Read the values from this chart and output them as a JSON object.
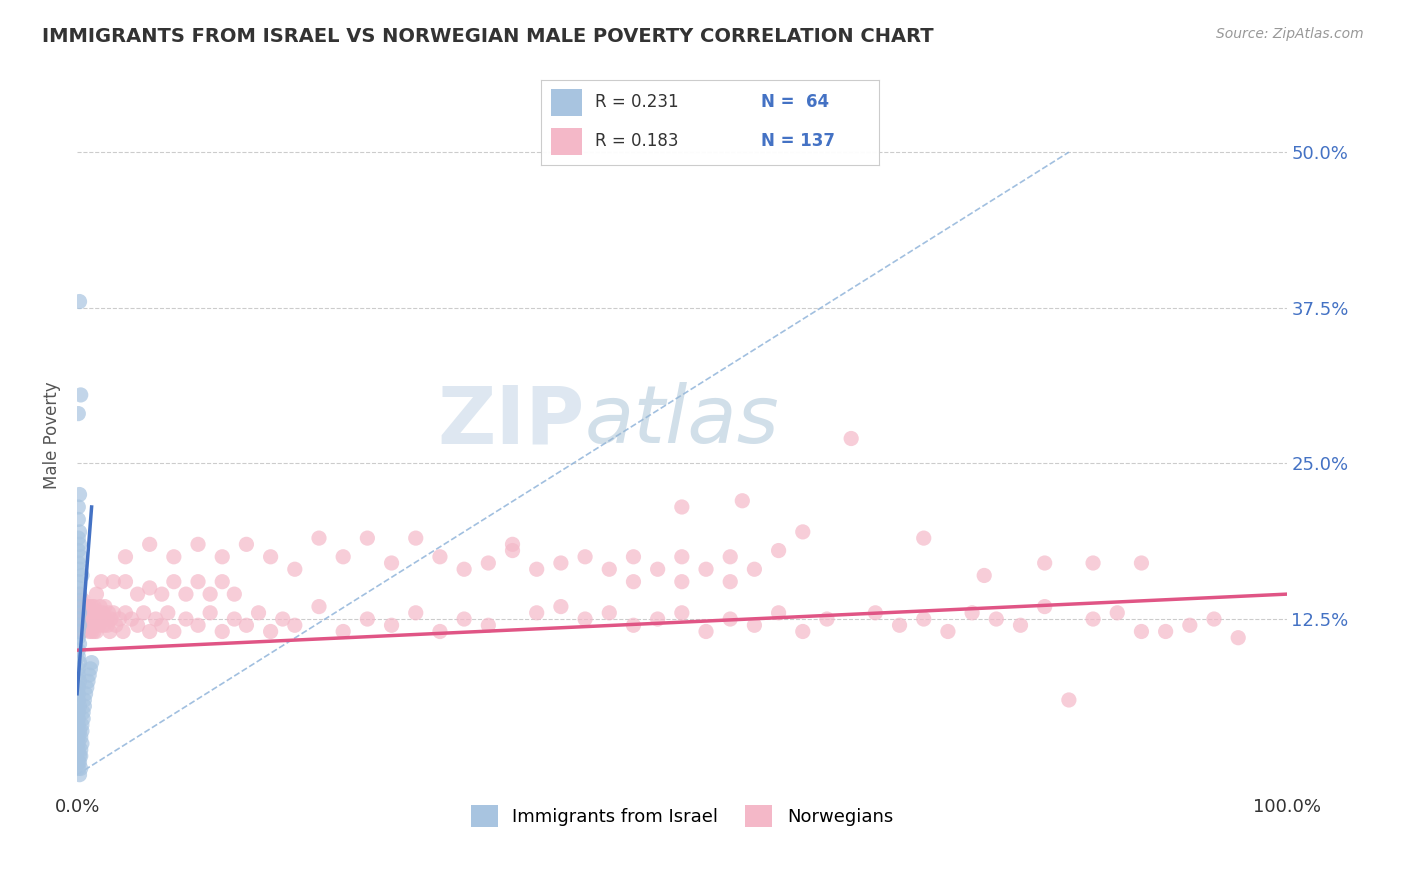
{
  "title": "IMMIGRANTS FROM ISRAEL VS NORWEGIAN MALE POVERTY CORRELATION CHART",
  "source": "Source: ZipAtlas.com",
  "ylabel": "Male Poverty",
  "xlim": [
    0,
    1.0
  ],
  "ylim": [
    -0.015,
    0.56
  ],
  "xtick_labels": [
    "0.0%",
    "100.0%"
  ],
  "ytick_labels": [
    "12.5%",
    "25.0%",
    "37.5%",
    "50.0%"
  ],
  "ytick_values": [
    0.125,
    0.25,
    0.375,
    0.5
  ],
  "color_israel": "#a8c4e0",
  "color_norway": "#f4b8c8",
  "color_israel_line": "#4472c4",
  "color_norway_line": "#e05585",
  "color_diag_dash": "#8ab0d8",
  "watermark_ZIP": "ZIP",
  "watermark_atlas": "atlas",
  "israel_scatter": [
    [
      0.002,
      0.38
    ],
    [
      0.003,
      0.305
    ],
    [
      0.001,
      0.29
    ],
    [
      0.002,
      0.225
    ],
    [
      0.001,
      0.215
    ],
    [
      0.001,
      0.205
    ],
    [
      0.002,
      0.195
    ],
    [
      0.001,
      0.19
    ],
    [
      0.002,
      0.185
    ],
    [
      0.001,
      0.18
    ],
    [
      0.003,
      0.175
    ],
    [
      0.001,
      0.17
    ],
    [
      0.002,
      0.165
    ],
    [
      0.004,
      0.16
    ],
    [
      0.001,
      0.155
    ],
    [
      0.001,
      0.15
    ],
    [
      0.002,
      0.145
    ],
    [
      0.001,
      0.14
    ],
    [
      0.001,
      0.135
    ],
    [
      0.002,
      0.13
    ],
    [
      0.001,
      0.125
    ],
    [
      0.002,
      0.12
    ],
    [
      0.001,
      0.115
    ],
    [
      0.001,
      0.11
    ],
    [
      0.002,
      0.105
    ],
    [
      0.001,
      0.1
    ],
    [
      0.001,
      0.095
    ],
    [
      0.002,
      0.09
    ],
    [
      0.001,
      0.085
    ],
    [
      0.001,
      0.08
    ],
    [
      0.002,
      0.075
    ],
    [
      0.001,
      0.07
    ],
    [
      0.001,
      0.065
    ],
    [
      0.001,
      0.06
    ],
    [
      0.002,
      0.055
    ],
    [
      0.001,
      0.05
    ],
    [
      0.001,
      0.045
    ],
    [
      0.001,
      0.04
    ],
    [
      0.002,
      0.035
    ],
    [
      0.001,
      0.03
    ],
    [
      0.001,
      0.025
    ],
    [
      0.001,
      0.02
    ],
    [
      0.002,
      0.015
    ],
    [
      0.001,
      0.01
    ],
    [
      0.001,
      0.005
    ],
    [
      0.002,
      0.0
    ],
    [
      0.003,
      0.005
    ],
    [
      0.002,
      0.01
    ],
    [
      0.003,
      0.015
    ],
    [
      0.003,
      0.02
    ],
    [
      0.004,
      0.025
    ],
    [
      0.003,
      0.03
    ],
    [
      0.004,
      0.035
    ],
    [
      0.004,
      0.04
    ],
    [
      0.005,
      0.045
    ],
    [
      0.005,
      0.05
    ],
    [
      0.006,
      0.055
    ],
    [
      0.006,
      0.06
    ],
    [
      0.007,
      0.065
    ],
    [
      0.008,
      0.07
    ],
    [
      0.009,
      0.075
    ],
    [
      0.01,
      0.08
    ],
    [
      0.011,
      0.085
    ],
    [
      0.012,
      0.09
    ]
  ],
  "norway_scatter": [
    [
      0.001,
      0.135
    ],
    [
      0.001,
      0.125
    ],
    [
      0.001,
      0.115
    ],
    [
      0.002,
      0.145
    ],
    [
      0.002,
      0.13
    ],
    [
      0.002,
      0.12
    ],
    [
      0.003,
      0.14
    ],
    [
      0.003,
      0.13
    ],
    [
      0.003,
      0.115
    ],
    [
      0.004,
      0.135
    ],
    [
      0.004,
      0.125
    ],
    [
      0.004,
      0.115
    ],
    [
      0.005,
      0.14
    ],
    [
      0.005,
      0.13
    ],
    [
      0.005,
      0.12
    ],
    [
      0.006,
      0.135
    ],
    [
      0.006,
      0.125
    ],
    [
      0.007,
      0.13
    ],
    [
      0.007,
      0.12
    ],
    [
      0.008,
      0.135
    ],
    [
      0.008,
      0.125
    ],
    [
      0.009,
      0.13
    ],
    [
      0.009,
      0.12
    ],
    [
      0.01,
      0.135
    ],
    [
      0.01,
      0.115
    ],
    [
      0.011,
      0.13
    ],
    [
      0.011,
      0.12
    ],
    [
      0.012,
      0.135
    ],
    [
      0.012,
      0.115
    ],
    [
      0.013,
      0.13
    ],
    [
      0.013,
      0.12
    ],
    [
      0.014,
      0.135
    ],
    [
      0.014,
      0.115
    ],
    [
      0.015,
      0.13
    ],
    [
      0.015,
      0.12
    ],
    [
      0.016,
      0.145
    ],
    [
      0.016,
      0.115
    ],
    [
      0.017,
      0.13
    ],
    [
      0.018,
      0.12
    ],
    [
      0.019,
      0.135
    ],
    [
      0.02,
      0.125
    ],
    [
      0.021,
      0.13
    ],
    [
      0.022,
      0.12
    ],
    [
      0.023,
      0.135
    ],
    [
      0.024,
      0.125
    ],
    [
      0.025,
      0.12
    ],
    [
      0.026,
      0.13
    ],
    [
      0.027,
      0.115
    ],
    [
      0.028,
      0.125
    ],
    [
      0.03,
      0.13
    ],
    [
      0.032,
      0.12
    ],
    [
      0.035,
      0.125
    ],
    [
      0.038,
      0.115
    ],
    [
      0.04,
      0.13
    ],
    [
      0.045,
      0.125
    ],
    [
      0.05,
      0.12
    ],
    [
      0.055,
      0.13
    ],
    [
      0.06,
      0.115
    ],
    [
      0.065,
      0.125
    ],
    [
      0.07,
      0.12
    ],
    [
      0.075,
      0.13
    ],
    [
      0.08,
      0.115
    ],
    [
      0.09,
      0.125
    ],
    [
      0.1,
      0.12
    ],
    [
      0.11,
      0.13
    ],
    [
      0.12,
      0.115
    ],
    [
      0.13,
      0.125
    ],
    [
      0.14,
      0.12
    ],
    [
      0.15,
      0.13
    ],
    [
      0.16,
      0.115
    ],
    [
      0.17,
      0.125
    ],
    [
      0.18,
      0.12
    ],
    [
      0.2,
      0.135
    ],
    [
      0.22,
      0.115
    ],
    [
      0.24,
      0.125
    ],
    [
      0.26,
      0.12
    ],
    [
      0.28,
      0.13
    ],
    [
      0.3,
      0.115
    ],
    [
      0.32,
      0.125
    ],
    [
      0.34,
      0.12
    ],
    [
      0.36,
      0.18
    ],
    [
      0.38,
      0.13
    ],
    [
      0.4,
      0.135
    ],
    [
      0.42,
      0.125
    ],
    [
      0.44,
      0.13
    ],
    [
      0.46,
      0.12
    ],
    [
      0.48,
      0.125
    ],
    [
      0.5,
      0.13
    ],
    [
      0.52,
      0.115
    ],
    [
      0.54,
      0.125
    ],
    [
      0.56,
      0.12
    ],
    [
      0.58,
      0.13
    ],
    [
      0.6,
      0.115
    ],
    [
      0.62,
      0.125
    ],
    [
      0.64,
      0.27
    ],
    [
      0.66,
      0.13
    ],
    [
      0.68,
      0.12
    ],
    [
      0.7,
      0.125
    ],
    [
      0.72,
      0.115
    ],
    [
      0.74,
      0.13
    ],
    [
      0.76,
      0.125
    ],
    [
      0.78,
      0.12
    ],
    [
      0.8,
      0.135
    ],
    [
      0.82,
      0.06
    ],
    [
      0.84,
      0.125
    ],
    [
      0.86,
      0.13
    ],
    [
      0.88,
      0.115
    ],
    [
      0.9,
      0.115
    ],
    [
      0.92,
      0.12
    ],
    [
      0.94,
      0.125
    ],
    [
      0.96,
      0.11
    ],
    [
      0.04,
      0.175
    ],
    [
      0.06,
      0.185
    ],
    [
      0.08,
      0.175
    ],
    [
      0.1,
      0.185
    ],
    [
      0.12,
      0.175
    ],
    [
      0.14,
      0.185
    ],
    [
      0.16,
      0.175
    ],
    [
      0.2,
      0.19
    ],
    [
      0.22,
      0.175
    ],
    [
      0.24,
      0.19
    ],
    [
      0.26,
      0.17
    ],
    [
      0.28,
      0.19
    ],
    [
      0.3,
      0.175
    ],
    [
      0.32,
      0.165
    ],
    [
      0.34,
      0.17
    ],
    [
      0.36,
      0.185
    ],
    [
      0.38,
      0.165
    ],
    [
      0.4,
      0.17
    ],
    [
      0.42,
      0.175
    ],
    [
      0.44,
      0.165
    ],
    [
      0.46,
      0.175
    ],
    [
      0.48,
      0.165
    ],
    [
      0.5,
      0.175
    ],
    [
      0.52,
      0.165
    ],
    [
      0.54,
      0.175
    ],
    [
      0.56,
      0.165
    ],
    [
      0.58,
      0.18
    ],
    [
      0.18,
      0.165
    ],
    [
      0.02,
      0.155
    ],
    [
      0.03,
      0.155
    ],
    [
      0.04,
      0.155
    ],
    [
      0.05,
      0.145
    ],
    [
      0.06,
      0.15
    ],
    [
      0.07,
      0.145
    ],
    [
      0.08,
      0.155
    ],
    [
      0.09,
      0.145
    ],
    [
      0.1,
      0.155
    ],
    [
      0.11,
      0.145
    ],
    [
      0.12,
      0.155
    ],
    [
      0.13,
      0.145
    ],
    [
      0.6,
      0.195
    ],
    [
      0.7,
      0.19
    ],
    [
      0.75,
      0.16
    ],
    [
      0.8,
      0.17
    ],
    [
      0.84,
      0.17
    ],
    [
      0.88,
      0.17
    ],
    [
      0.5,
      0.215
    ],
    [
      0.55,
      0.22
    ],
    [
      0.46,
      0.155
    ],
    [
      0.5,
      0.155
    ],
    [
      0.54,
      0.155
    ]
  ],
  "israel_line_x": [
    0.0,
    0.012
  ],
  "israel_line_y": [
    0.065,
    0.215
  ],
  "norway_line_x": [
    0.0,
    1.0
  ],
  "norway_line_y": [
    0.1,
    0.145
  ],
  "diag_line_x": [
    0.0,
    0.82
  ],
  "diag_line_y": [
    0.0,
    0.5
  ]
}
